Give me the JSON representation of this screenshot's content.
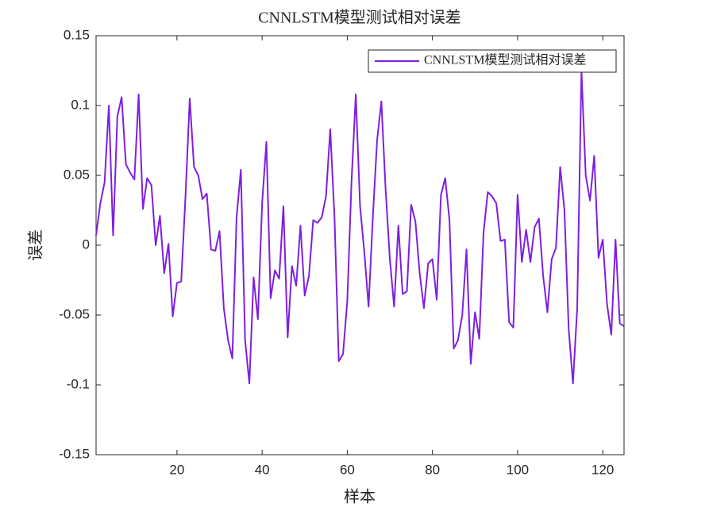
{
  "chart_data": {
    "type": "line",
    "title": "CNNLSTM模型测试相对误差",
    "xlabel": "样本",
    "ylabel": "误差",
    "x": [
      1,
      2,
      3,
      4,
      5,
      6,
      7,
      8,
      9,
      10,
      11,
      12,
      13,
      14,
      15,
      16,
      17,
      18,
      19,
      20,
      21,
      22,
      23,
      24,
      25,
      26,
      27,
      28,
      29,
      30,
      31,
      32,
      33,
      34,
      35,
      36,
      37,
      38,
      39,
      40,
      41,
      42,
      43,
      44,
      45,
      46,
      47,
      48,
      49,
      50,
      51,
      52,
      53,
      54,
      55,
      56,
      57,
      58,
      59,
      60,
      61,
      62,
      63,
      64,
      65,
      66,
      67,
      68,
      69,
      70,
      71,
      72,
      73,
      74,
      75,
      76,
      77,
      78,
      79,
      80,
      81,
      82,
      83,
      84,
      85,
      86,
      87,
      88,
      89,
      90,
      91,
      92,
      93,
      94,
      95,
      96,
      97,
      98,
      99,
      100,
      101,
      102,
      103,
      104,
      105,
      106,
      107,
      108,
      109,
      110,
      111,
      112,
      113,
      114,
      115,
      116,
      117,
      118,
      119,
      120,
      121,
      122,
      123,
      124,
      125
    ],
    "series": [
      {
        "name": "CNNLSTM模型测试相对误差",
        "color": "#7e1fe0",
        "values": [
          0.007,
          0.03,
          0.045,
          0.1,
          0.007,
          0.092,
          0.106,
          0.058,
          0.052,
          0.047,
          0.108,
          0.026,
          0.048,
          0.043,
          0.0,
          0.021,
          -0.02,
          0.001,
          -0.051,
          -0.027,
          -0.026,
          0.035,
          0.105,
          0.056,
          0.05,
          0.033,
          0.037,
          -0.003,
          -0.004,
          0.01,
          -0.045,
          -0.068,
          -0.081,
          0.02,
          0.054,
          -0.068,
          -0.099,
          -0.023,
          -0.053,
          0.03,
          0.074,
          -0.038,
          -0.018,
          -0.024,
          0.028,
          -0.066,
          -0.015,
          -0.029,
          0.014,
          -0.036,
          -0.022,
          0.018,
          0.016,
          0.02,
          0.035,
          0.083,
          0.02,
          -0.083,
          -0.078,
          -0.04,
          0.046,
          0.108,
          0.028,
          -0.005,
          -0.044,
          0.02,
          0.075,
          0.103,
          0.04,
          -0.01,
          -0.044,
          0.014,
          -0.035,
          -0.033,
          0.029,
          0.017,
          -0.02,
          -0.045,
          -0.013,
          -0.01,
          -0.039,
          0.036,
          0.048,
          0.018,
          -0.074,
          -0.068,
          -0.05,
          -0.003,
          -0.085,
          -0.048,
          -0.067,
          0.009,
          0.038,
          0.035,
          0.03,
          0.003,
          0.004,
          -0.055,
          -0.059,
          0.036,
          -0.012,
          0.011,
          -0.012,
          0.013,
          0.019,
          -0.022,
          -0.048,
          -0.01,
          -0.002,
          0.056,
          0.025,
          -0.06,
          -0.099,
          -0.045,
          0.125,
          0.05,
          0.032,
          0.064,
          -0.009,
          0.004,
          -0.042,
          -0.064,
          0.004,
          -0.056,
          -0.058
        ]
      }
    ],
    "xlim": [
      1,
      125
    ],
    "xticks": [
      20,
      40,
      60,
      80,
      100,
      120
    ],
    "ylim": [
      -0.15,
      0.15
    ],
    "yticks": [
      -0.15,
      -0.1,
      -0.05,
      0,
      0.05,
      0.1,
      0.15
    ],
    "grid": false,
    "legend": "northeast"
  }
}
